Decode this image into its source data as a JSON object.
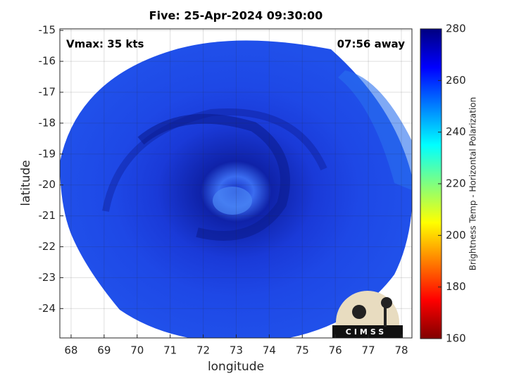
{
  "chart_data": {
    "type": "heatmap",
    "title": "Five: 25-Apr-2024 09:30:00",
    "annotations": [
      "Vmax: 35 kts",
      "07:56 away"
    ],
    "xlabel": "longitude",
    "ylabel": "latitude",
    "xlim": [
      67.66,
      78.32
    ],
    "xticks": [
      68,
      69,
      70,
      71,
      72,
      73,
      74,
      75,
      76,
      77,
      78
    ],
    "ylim": [
      -24.95,
      -14.95
    ],
    "yticks": [
      -24,
      -23,
      -22,
      -21,
      -20,
      -19,
      -18,
      -17,
      -16,
      -15
    ],
    "grid": true,
    "colorbar": {
      "label": "Brightness Temp - Horizontal Polarization",
      "lim": [
        160,
        280
      ],
      "ticks": [
        160,
        180,
        200,
        220,
        240,
        260,
        280
      ],
      "colormap": "jet"
    }
  },
  "logo": "CIMSS"
}
